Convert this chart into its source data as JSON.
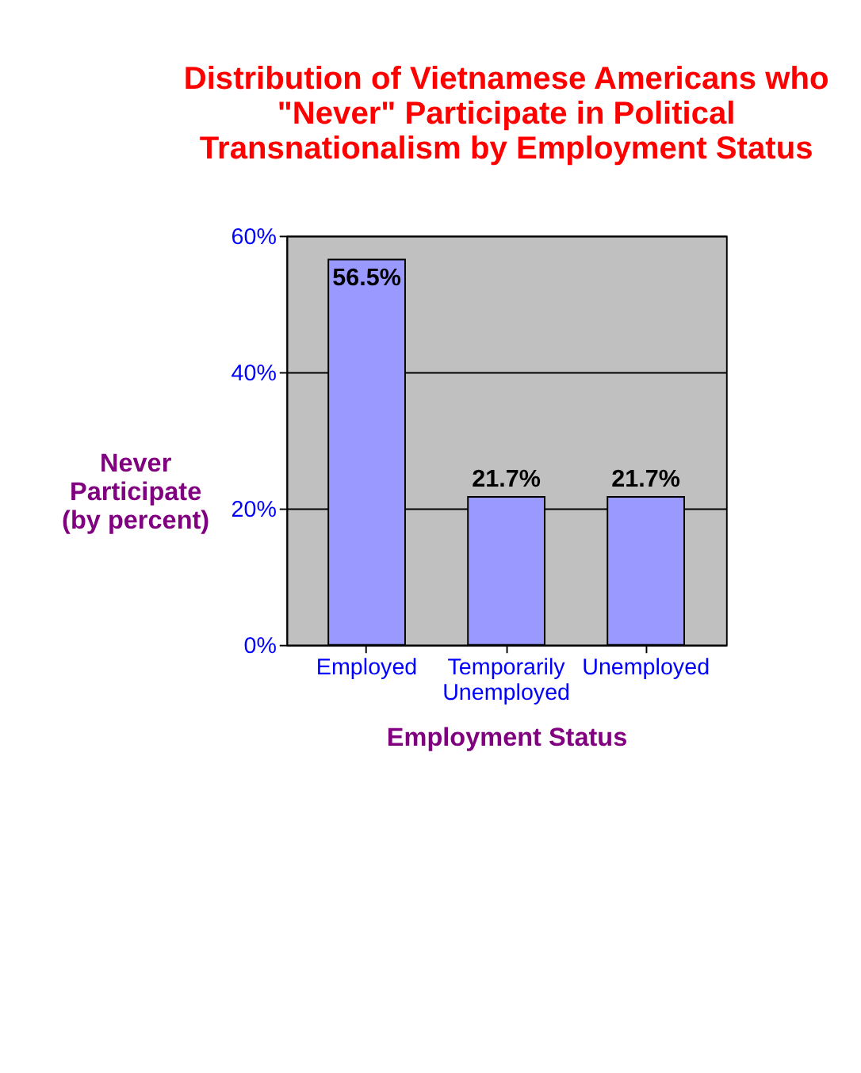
{
  "chart_data": {
    "type": "bar",
    "title": "Distribution of Vietnamese Americans who \"Never\" Participate in Political Transnationalism by Employment Status",
    "xlabel": "Employment Status",
    "ylabel": "Never Participate (by percent)",
    "categories": [
      "Employed",
      "Temporarily Unemployed",
      "Unemployed"
    ],
    "values": [
      56.5,
      21.7,
      21.7
    ],
    "color": "#9999ff",
    "value_labels": [
      "56.5%",
      "21.7%",
      "21.7%"
    ],
    "ylim": [
      0,
      60
    ],
    "yticks": [
      {
        "value": 0,
        "label": "0%"
      },
      {
        "value": 20,
        "label": "20%"
      },
      {
        "value": 40,
        "label": "40%"
      },
      {
        "value": 60,
        "label": "60%"
      }
    ],
    "grid": "y"
  }
}
